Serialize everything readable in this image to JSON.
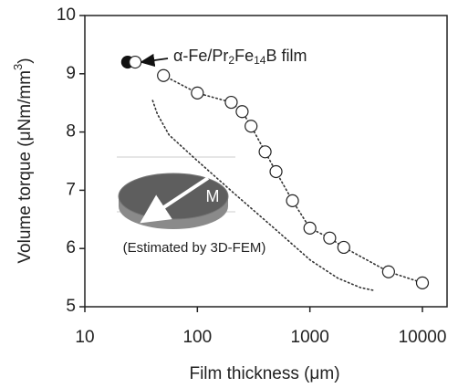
{
  "chart_data": {
    "type": "scatter",
    "xlabel": "Film thickness (μm)",
    "ylabel": [
      "Volume torque (μNm/mm",
      "3",
      ")"
    ],
    "xlim": [
      10,
      10000
    ],
    "xticks": [
      10,
      100,
      1000,
      10000
    ],
    "xscale": "log",
    "ylim": [
      5,
      10
    ],
    "yticks": [
      5,
      6,
      7,
      8,
      9,
      10
    ],
    "annotation": [
      "α-Fe/Pr",
      "2",
      "Fe",
      "14",
      "B film"
    ],
    "inset_label": "M",
    "inset_caption": "(Estimated by 3D-FEM)",
    "series": [
      {
        "marker": "filled",
        "color": "#111111",
        "x": [
          24
        ],
        "values": [
          9.2
        ]
      },
      {
        "marker": "open",
        "color": "#222222",
        "x": [
          28,
          50,
          100,
          200,
          250,
          300,
          400,
          500,
          700,
          1000,
          1500,
          2000,
          5000,
          10000
        ],
        "values": [
          9.2,
          8.97,
          8.67,
          8.51,
          8.35,
          8.1,
          7.66,
          7.32,
          6.82,
          6.35,
          6.18,
          6.02,
          5.6,
          5.41
        ]
      },
      {
        "marker": "dotted-line",
        "color": "#333333",
        "x": [
          50,
          100,
          200,
          250,
          300,
          400,
          500,
          700,
          1000,
          1500,
          2000,
          5000,
          10000
        ],
        "values": [
          8.97,
          8.67,
          8.51,
          8.35,
          8.1,
          7.66,
          7.32,
          6.82,
          6.35,
          6.18,
          6.02,
          5.6,
          5.41
        ]
      },
      {
        "marker": "dotted-line",
        "color": "#333333",
        "x": [
          40,
          44,
          56,
          98,
          226,
          480,
          1010,
          1770,
          2800,
          3700
        ],
        "values": [
          8.54,
          8.31,
          7.95,
          7.52,
          6.9,
          6.35,
          5.8,
          5.49,
          5.33,
          5.28
        ]
      }
    ]
  }
}
